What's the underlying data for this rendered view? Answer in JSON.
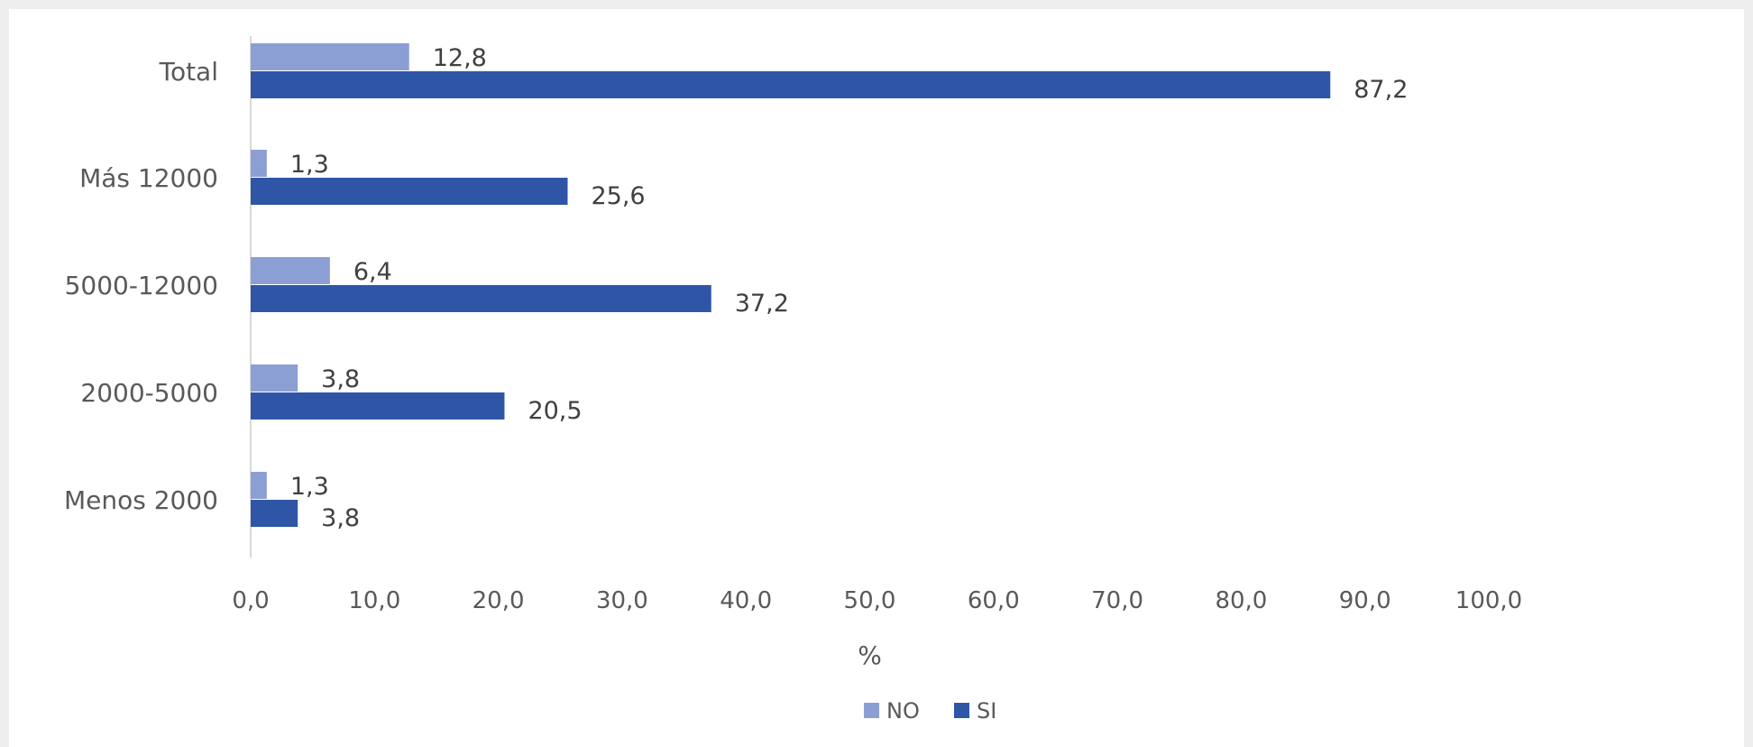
{
  "colors": {
    "NO": "#8c9fd4",
    "SI": "#2f56a6",
    "axis": "#d9d9d9"
  },
  "chart_data": {
    "type": "bar",
    "orientation": "horizontal",
    "categories": [
      "Total",
      "Más 12000",
      "5000-12000",
      "2000-5000",
      "Menos 2000"
    ],
    "series": [
      {
        "name": "NO",
        "values": [
          12.8,
          1.3,
          6.4,
          3.8,
          1.3
        ],
        "labels": [
          "12,8",
          "1,3",
          "6,4",
          "3,8",
          "1,3"
        ]
      },
      {
        "name": "SI",
        "values": [
          87.2,
          25.6,
          37.2,
          20.5,
          3.8
        ],
        "labels": [
          "87,2",
          "25,6",
          "37,2",
          "20,5",
          "3,8"
        ]
      }
    ],
    "xlim": [
      0,
      100
    ],
    "xticks": [
      0,
      10,
      20,
      30,
      40,
      50,
      60,
      70,
      80,
      90,
      100
    ],
    "xtick_labels": [
      "0,0",
      "10,0",
      "20,0",
      "30,0",
      "40,0",
      "50,0",
      "60,0",
      "70,0",
      "80,0",
      "90,0",
      "100,0"
    ],
    "xlabel": "%",
    "ylabel": "",
    "title": "",
    "grid": false,
    "legend_position": "bottom",
    "legend": [
      {
        "name": "NO",
        "label": "NO"
      },
      {
        "name": "SI",
        "label": "SI"
      }
    ]
  }
}
